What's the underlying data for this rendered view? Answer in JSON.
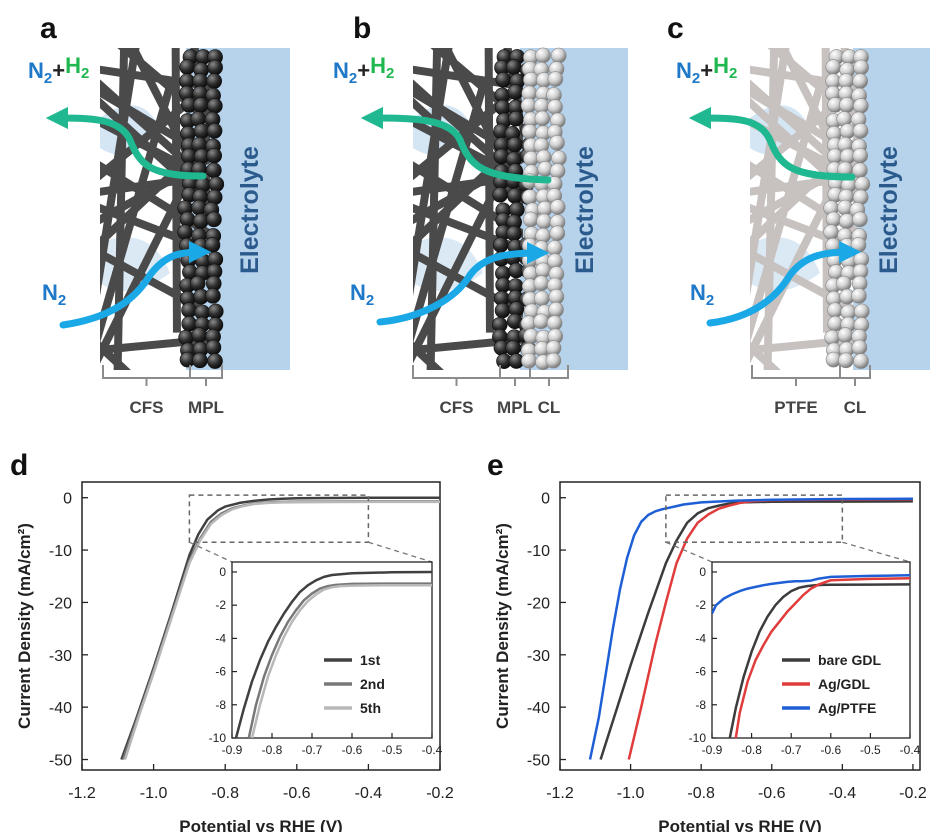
{
  "panels": {
    "a": {
      "letter": "a",
      "gas_out": {
        "n": "N",
        "sub1": "2",
        "plus": "+",
        "h": "H",
        "sub2": "2"
      },
      "gas_in": {
        "n": "N",
        "sub": "2"
      },
      "electrolyte": "Electrolyte",
      "layers": [
        "CFS",
        "MPL"
      ]
    },
    "b": {
      "letter": "b",
      "gas_out": {
        "n": "N",
        "sub1": "2",
        "plus": "+",
        "h": "H",
        "sub2": "2"
      },
      "gas_in": {
        "n": "N",
        "sub": "2"
      },
      "electrolyte": "Electrolyte",
      "layers": [
        "CFS",
        "MPL",
        "CL"
      ]
    },
    "c": {
      "letter": "c",
      "gas_out": {
        "n": "N",
        "sub1": "2",
        "plus": "+",
        "h": "H",
        "sub2": "2"
      },
      "gas_in": {
        "n": "N",
        "sub": "2"
      },
      "electrolyte": "Electrolyte",
      "layers": [
        "PTFE",
        "CL"
      ]
    }
  },
  "colors": {
    "electrolyte": "#b7d3ec",
    "electrolyte_text": "#2b5a8c",
    "fiber_dark": "#4a4a4a",
    "fiber_light": "#c7c2c0",
    "arrow_out": "#1fb890",
    "arrow_in": "#1aa8e6",
    "n2_text": "#1f78c8",
    "h2_text": "#1fb850",
    "bracket": "#8c8c8c"
  },
  "chart_data": [
    {
      "type": "line",
      "panel": "d",
      "xlabel": "Potential vs RHE (V)",
      "ylabel": "Current Density (mA/cm²)",
      "xlim": [
        -1.2,
        -0.2
      ],
      "ylim": [
        -52,
        3
      ],
      "xticks": [
        "-1.2",
        "-1.0",
        "-0.8",
        "-0.6",
        "-0.4",
        "-0.2"
      ],
      "yticks": [
        "0",
        "-10",
        "-20",
        "-30",
        "-40",
        "-50"
      ],
      "series": [
        {
          "name": "1st",
          "color": "#404040",
          "x": [
            -1.09,
            -1.05,
            -1.0,
            -0.95,
            -0.9,
            -0.875,
            -0.85,
            -0.82,
            -0.8,
            -0.76,
            -0.72,
            -0.68,
            -0.64,
            -0.6,
            -0.5,
            -0.4,
            -0.2
          ],
          "y": [
            -50,
            -42.5,
            -32.5,
            -22,
            -11,
            -7,
            -4.2,
            -2.4,
            -1.7,
            -1.0,
            -0.6,
            -0.35,
            -0.2,
            -0.1,
            -0.05,
            0,
            0
          ]
        },
        {
          "name": "2nd",
          "color": "#787878",
          "x": [
            -1.085,
            -1.04,
            -1.0,
            -0.95,
            -0.9,
            -0.87,
            -0.84,
            -0.81,
            -0.78,
            -0.75,
            -0.72,
            -0.68,
            -0.64,
            -0.6,
            -0.5,
            -0.4,
            -0.2
          ],
          "y": [
            -50,
            -41,
            -33,
            -22.5,
            -12,
            -7.8,
            -4.6,
            -3.0,
            -2.0,
            -1.5,
            -1.1,
            -0.9,
            -0.8,
            -0.75,
            -0.72,
            -0.7,
            -0.7
          ]
        },
        {
          "name": "5th",
          "color": "#b8b8b8",
          "x": [
            -1.08,
            -1.04,
            -1.0,
            -0.95,
            -0.9,
            -0.87,
            -0.84,
            -0.81,
            -0.78,
            -0.75,
            -0.72,
            -0.68,
            -0.64,
            -0.6,
            -0.5,
            -0.4,
            -0.2
          ],
          "y": [
            -50,
            -41.5,
            -33.5,
            -23,
            -12.5,
            -8.2,
            -5.0,
            -3.3,
            -2.2,
            -1.6,
            -1.2,
            -1.0,
            -0.9,
            -0.85,
            -0.82,
            -0.8,
            -0.8
          ]
        }
      ],
      "inset": {
        "xlim": [
          -0.9,
          -0.4
        ],
        "ylim": [
          -10,
          0.6
        ],
        "xticks": [
          "-0.9",
          "-0.8",
          "-0.7",
          "-0.6",
          "-0.5",
          "-0.4"
        ],
        "yticks": [
          "0",
          "-2",
          "-4",
          "-6",
          "-8",
          "-10"
        ],
        "zoom_box": {
          "x": [
            -0.9,
            -0.4
          ],
          "y": [
            -8.5,
            0.5
          ]
        },
        "legend": [
          "1st",
          "2nd",
          "5th"
        ],
        "legend_position": "bottom-right",
        "series": [
          {
            "name": "1st",
            "color": "#404040",
            "x": [
              -0.89,
              -0.87,
              -0.85,
              -0.83,
              -0.81,
              -0.79,
              -0.77,
              -0.75,
              -0.73,
              -0.71,
              -0.69,
              -0.67,
              -0.65,
              -0.6,
              -0.5,
              -0.4
            ],
            "y": [
              -10,
              -8.2,
              -6.6,
              -5.3,
              -4.2,
              -3.3,
              -2.5,
              -1.8,
              -1.2,
              -0.8,
              -0.5,
              -0.3,
              -0.18,
              -0.08,
              -0.02,
              0
            ]
          },
          {
            "name": "2nd",
            "color": "#787878",
            "x": [
              -0.858,
              -0.84,
              -0.82,
              -0.8,
              -0.78,
              -0.76,
              -0.74,
              -0.72,
              -0.7,
              -0.68,
              -0.66,
              -0.64,
              -0.6,
              -0.5,
              -0.4
            ],
            "y": [
              -10,
              -8.0,
              -6.3,
              -5.0,
              -3.9,
              -3.0,
              -2.3,
              -1.7,
              -1.3,
              -1.0,
              -0.85,
              -0.78,
              -0.72,
              -0.7,
              -0.7
            ]
          },
          {
            "name": "5th",
            "color": "#b8b8b8",
            "x": [
              -0.85,
              -0.83,
              -0.81,
              -0.79,
              -0.77,
              -0.75,
              -0.73,
              -0.71,
              -0.69,
              -0.67,
              -0.65,
              -0.63,
              -0.6,
              -0.5,
              -0.4
            ],
            "y": [
              -10,
              -8.0,
              -6.3,
              -5.0,
              -3.9,
              -3.0,
              -2.3,
              -1.75,
              -1.35,
              -1.05,
              -0.92,
              -0.85,
              -0.82,
              -0.8,
              -0.8
            ]
          }
        ]
      }
    },
    {
      "type": "line",
      "panel": "e",
      "xlabel": "Potential vs RHE (V)",
      "ylabel": "Current Density (mA/cm²)",
      "xlim": [
        -1.2,
        -0.18
      ],
      "ylim": [
        -52,
        3
      ],
      "xticks": [
        "-1.2",
        "-1.0",
        "-0.8",
        "-0.6",
        "-0.4",
        "-0.2"
      ],
      "yticks": [
        "0",
        "-10",
        "-20",
        "-30",
        "-40",
        "-50"
      ],
      "series": [
        {
          "name": "bare GDL",
          "color": "#3c3c3c",
          "x": [
            -1.085,
            -1.04,
            -1.0,
            -0.95,
            -0.9,
            -0.87,
            -0.84,
            -0.81,
            -0.78,
            -0.75,
            -0.72,
            -0.68,
            -0.64,
            -0.6,
            -0.5,
            -0.4,
            -0.2
          ],
          "y": [
            -50,
            -40.5,
            -32,
            -22,
            -12.5,
            -8.2,
            -4.8,
            -3.0,
            -2.0,
            -1.5,
            -1.1,
            -0.9,
            -0.82,
            -0.78,
            -0.75,
            -0.75,
            -0.7
          ]
        },
        {
          "name": "Ag/GDL",
          "color": "#e03c3c",
          "x": [
            -1.005,
            -0.97,
            -0.93,
            -0.9,
            -0.87,
            -0.84,
            -0.81,
            -0.78,
            -0.75,
            -0.72,
            -0.69,
            -0.66,
            -0.63,
            -0.6,
            -0.5,
            -0.4,
            -0.2
          ],
          "y": [
            -50,
            -40,
            -28,
            -20,
            -12.5,
            -7.8,
            -4.8,
            -3.2,
            -2.1,
            -1.5,
            -1.0,
            -0.7,
            -0.55,
            -0.45,
            -0.38,
            -0.35,
            -0.3
          ]
        },
        {
          "name": "Ag/PTFE",
          "color": "#1f5fd6",
          "x": [
            -1.115,
            -1.09,
            -1.07,
            -1.05,
            -1.03,
            -1.01,
            -0.99,
            -0.97,
            -0.95,
            -0.93,
            -0.91,
            -0.89,
            -0.87,
            -0.85,
            -0.8,
            -0.7,
            -0.6,
            -0.4,
            -0.2
          ],
          "y": [
            -50,
            -42,
            -33.5,
            -25,
            -17.5,
            -11.5,
            -7.2,
            -4.6,
            -3.3,
            -2.6,
            -2.2,
            -1.9,
            -1.6,
            -1.3,
            -0.9,
            -0.55,
            -0.4,
            -0.25,
            -0.2
          ]
        }
      ],
      "inset": {
        "xlim": [
          -0.9,
          -0.4
        ],
        "ylim": [
          -10,
          0.6
        ],
        "xticks": [
          "-0.9",
          "-0.8",
          "-0.7",
          "-0.6",
          "-0.5",
          "-0.4"
        ],
        "yticks": [
          "0",
          "-2",
          "-4",
          "-6",
          "-8",
          "-10"
        ],
        "zoom_box": {
          "x": [
            -0.9,
            -0.4
          ],
          "y": [
            -8.5,
            0.5
          ]
        },
        "legend": [
          "bare GDL",
          "Ag/GDL",
          "Ag/PTFE"
        ],
        "legend_position": "bottom-right",
        "series": [
          {
            "name": "bare GDL",
            "color": "#3c3c3c",
            "x": [
              -0.855,
              -0.84,
              -0.82,
              -0.8,
              -0.78,
              -0.76,
              -0.74,
              -0.72,
              -0.7,
              -0.68,
              -0.66,
              -0.64,
              -0.62,
              -0.6,
              -0.5,
              -0.4
            ],
            "y": [
              -10,
              -8.2,
              -6.3,
              -4.8,
              -3.6,
              -2.7,
              -2.0,
              -1.5,
              -1.15,
              -0.95,
              -0.85,
              -0.8,
              -0.78,
              -0.77,
              -0.76,
              -0.75
            ]
          },
          {
            "name": "Ag/GDL",
            "color": "#e03c3c",
            "x": [
              -0.84,
              -0.83,
              -0.81,
              -0.79,
              -0.77,
              -0.75,
              -0.73,
              -0.71,
              -0.69,
              -0.67,
              -0.65,
              -0.63,
              -0.61,
              -0.6,
              -0.5,
              -0.4
            ],
            "y": [
              -10,
              -8.5,
              -6.6,
              -5.3,
              -4.4,
              -3.6,
              -3.0,
              -2.4,
              -1.9,
              -1.4,
              -1.0,
              -0.75,
              -0.58,
              -0.5,
              -0.42,
              -0.38
            ]
          },
          {
            "name": "Ag/PTFE",
            "color": "#1f5fd6",
            "x": [
              -0.9,
              -0.89,
              -0.87,
              -0.85,
              -0.83,
              -0.81,
              -0.79,
              -0.77,
              -0.75,
              -0.73,
              -0.71,
              -0.69,
              -0.67,
              -0.65,
              -0.63,
              -0.6,
              -0.5,
              -0.4
            ],
            "y": [
              -2.5,
              -2.0,
              -1.6,
              -1.35,
              -1.15,
              -1.0,
              -0.9,
              -0.8,
              -0.72,
              -0.66,
              -0.6,
              -0.56,
              -0.55,
              -0.52,
              -0.4,
              -0.3,
              -0.24,
              -0.2
            ]
          }
        ]
      }
    }
  ]
}
